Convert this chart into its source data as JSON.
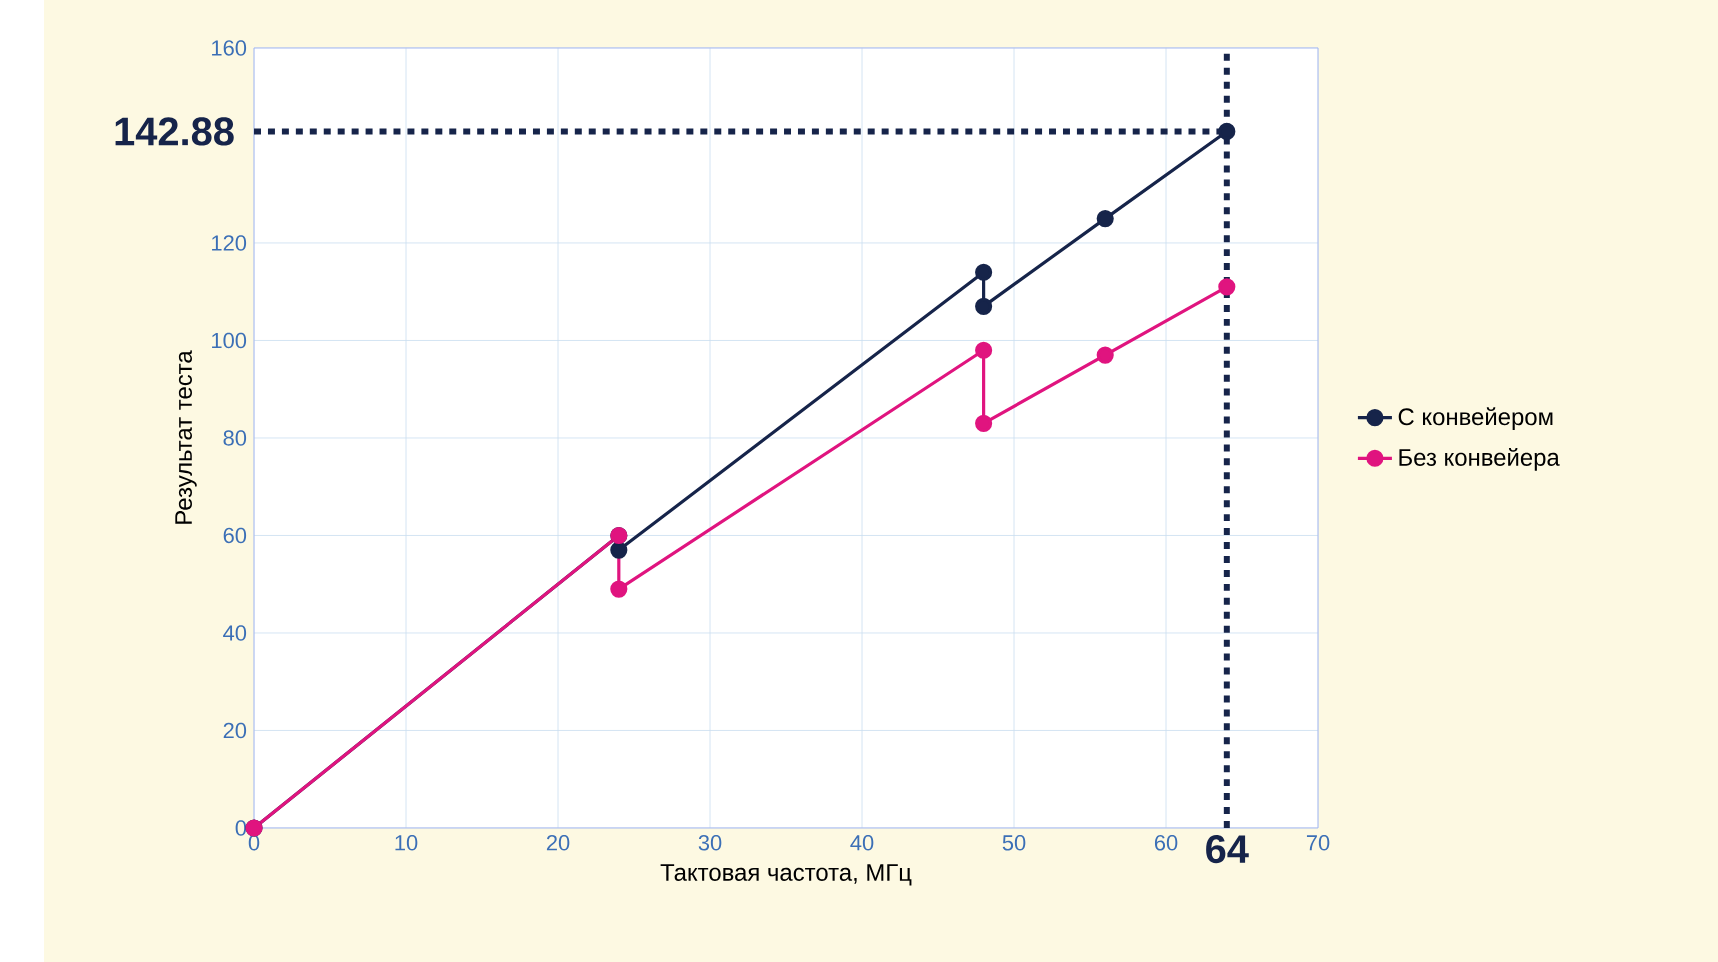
{
  "chart_data": {
    "type": "line",
    "xlabel": "Тактовая частота, МГц",
    "ylabel": "Результат теста",
    "xlim": [
      0,
      70
    ],
    "ylim": [
      0,
      160
    ],
    "xticks": [
      0,
      10,
      20,
      30,
      40,
      50,
      60,
      70
    ],
    "yticks": [
      0,
      20,
      40,
      60,
      80,
      100,
      120,
      160
    ],
    "grid": true,
    "legend": "right",
    "marker": "circle",
    "line_style": "solid",
    "series": [
      {
        "name": "С конвейером",
        "color": "#16244a",
        "x": [
          0,
          24,
          24,
          48,
          48,
          56,
          64
        ],
        "values": [
          0,
          60,
          57,
          114,
          107,
          125,
          142.88
        ]
      },
      {
        "name": "Без конвейера",
        "color": "#e0147f",
        "x": [
          0,
          24,
          24,
          48,
          48,
          56,
          64
        ],
        "values": [
          0,
          60,
          49,
          98,
          83,
          97,
          111
        ]
      }
    ],
    "ref_lines": [
      {
        "axis": "y",
        "value": 142.88,
        "label": "142.88",
        "color": "#16244a",
        "line_style": "dotted"
      },
      {
        "axis": "x",
        "value": 64,
        "label": "64",
        "color": "#16244a",
        "line_style": "dotted"
      }
    ]
  }
}
